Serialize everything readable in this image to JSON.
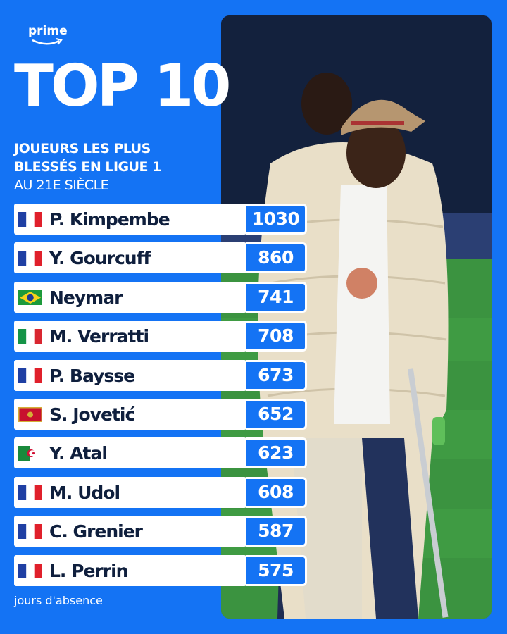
{
  "brand": {
    "logo_text": "prime"
  },
  "title": "TOP 10",
  "subtitle": {
    "line1": "JOUEURS LES PLUS",
    "line2": "BLESSÉS EN LIGUE 1",
    "line3": "AU 21E SIÈCLE"
  },
  "players": [
    {
      "name": "P. Kimpembe",
      "days": "1030",
      "flag": "france-flag"
    },
    {
      "name": "Y. Gourcuff",
      "days": "860",
      "flag": "france-flag"
    },
    {
      "name": "Neymar",
      "days": "741",
      "flag": "brazil-flag"
    },
    {
      "name": "M. Verratti",
      "days": "708",
      "flag": "italy-flag"
    },
    {
      "name": "P. Baysse",
      "days": "673",
      "flag": "france-flag"
    },
    {
      "name": "S. Jovetić",
      "days": "652",
      "flag": "montenegro-flag"
    },
    {
      "name": "Y. Atal",
      "days": "623",
      "flag": "algeria-flag"
    },
    {
      "name": "M. Udol",
      "days": "608",
      "flag": "france-flag"
    },
    {
      "name": "C. Grenier",
      "days": "587",
      "flag": "france-flag"
    },
    {
      "name": "L. Perrin",
      "days": "575",
      "flag": "france-flag"
    }
  ],
  "footer": "jours d'absence",
  "colors": {
    "background": "#1473f4",
    "row_bg": "#ffffff",
    "text_dark": "#0f1f3d"
  }
}
